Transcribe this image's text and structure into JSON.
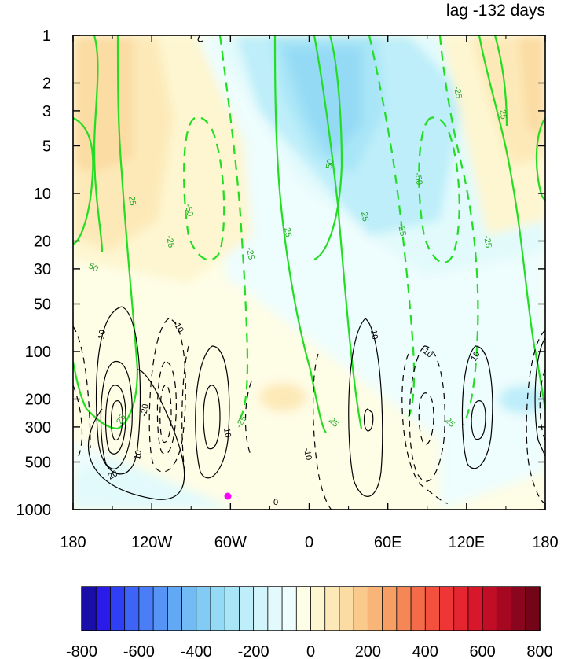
{
  "chart_data": {
    "type": "heatmap",
    "title": "lag -132 days",
    "xlabel": "",
    "ylabel": "",
    "x_ticks": [
      "180",
      "120W",
      "60W",
      "0",
      "60E",
      "120E",
      "180"
    ],
    "x_tick_values": [
      -180,
      -120,
      -60,
      0,
      60,
      120,
      180
    ],
    "y_ticks": [
      "1",
      "2",
      "3",
      "5",
      "10",
      "20",
      "30",
      "50",
      "100",
      "200",
      "300",
      "500",
      "1000"
    ],
    "y_tick_values": [
      1,
      2,
      3,
      5,
      10,
      20,
      30,
      50,
      100,
      200,
      300,
      500,
      1000
    ],
    "y_scale": "log",
    "y_reversed": true,
    "xlim": [
      -180,
      180
    ],
    "ylim": [
      1000,
      1
    ],
    "colorbar": {
      "labels": [
        "-800",
        "-600",
        "-400",
        "-200",
        "0",
        "200",
        "400",
        "600",
        "800"
      ],
      "levels": [
        -800,
        -750,
        -700,
        -650,
        -600,
        -550,
        -500,
        -450,
        -400,
        -350,
        -300,
        -250,
        -200,
        -150,
        -100,
        -50,
        0,
        50,
        100,
        150,
        200,
        250,
        300,
        350,
        400,
        450,
        500,
        550,
        600,
        650,
        700,
        750,
        800
      ],
      "colors": [
        "#1a0ea8",
        "#2a1be8",
        "#2e3ff5",
        "#3d63f7",
        "#4a7ef7",
        "#5695f6",
        "#62a9f5",
        "#72bbf5",
        "#82cbf4",
        "#94daf5",
        "#a8e5f7",
        "#bdeef9",
        "#d2f5fb",
        "#e2fafc",
        "#eefdfd",
        "#fefde6",
        "#fdf6d0",
        "#fde9b8",
        "#fbdca3",
        "#fac98c",
        "#f8b577",
        "#f79e65",
        "#f58656",
        "#f46b49",
        "#f3503e",
        "#ef3636",
        "#e52530",
        "#d8172b",
        "#c20d26",
        "#a60822",
        "#8a061e",
        "#740418"
      ]
    },
    "contour_labels": {
      "green": [
        "25",
        "50",
        "-25",
        "-50"
      ],
      "black": [
        "10",
        "-10",
        "20",
        "-20",
        "0"
      ]
    },
    "annotations": [
      {
        "type": "marker",
        "color": "#ff00ff",
        "x": -60,
        "y": 850
      }
    ]
  }
}
